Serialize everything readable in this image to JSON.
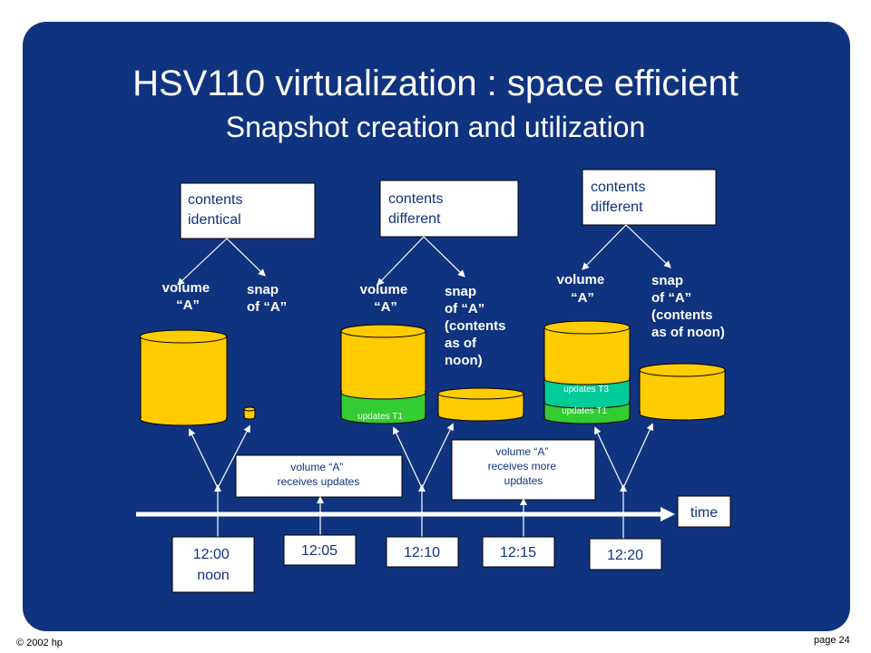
{
  "slide": {
    "title": "HSV110 virtualization : space efficient",
    "subtitle": "Snapshot creation and utilization"
  },
  "footer": {
    "copyright": "© 2002  hp",
    "page": "page 24"
  },
  "states": [
    {
      "contents_label": [
        "contents",
        "identical"
      ],
      "volume_label": [
        "volume",
        "“A”"
      ],
      "snap_label": [
        "snap",
        "of “A”"
      ]
    },
    {
      "contents_label": [
        "contents",
        "different"
      ],
      "volume_label": [
        "volume",
        "“A”"
      ],
      "snap_label": [
        "snap",
        "of “A”",
        "(contents",
        "as of",
        "noon)"
      ],
      "volume_updates": [
        "updates T1"
      ]
    },
    {
      "contents_label": [
        "contents",
        "different"
      ],
      "volume_label": [
        "volume",
        "“A”"
      ],
      "snap_label": [
        "snap",
        "of “A”",
        "(contents",
        "as of noon)"
      ],
      "volume_updates": [
        "updates T3",
        "updates T1"
      ]
    }
  ],
  "events": [
    [
      "volume “A”",
      "receives updates"
    ],
    [
      "volume “A”",
      "receives more",
      "updates"
    ]
  ],
  "timeline": {
    "axis_label": "time",
    "times": [
      [
        "12:00",
        "noon"
      ],
      [
        "12:05"
      ],
      [
        "12:10"
      ],
      [
        "12:15"
      ],
      [
        "12:20"
      ]
    ]
  },
  "colors": {
    "background": "#10337f",
    "cylinder_yellow": "#ffcc00",
    "updates_t1_green": "#33cc33",
    "updates_t3_teal": "#00cc99",
    "box_fill": "#ffffff",
    "text_dark": "#10337f"
  }
}
